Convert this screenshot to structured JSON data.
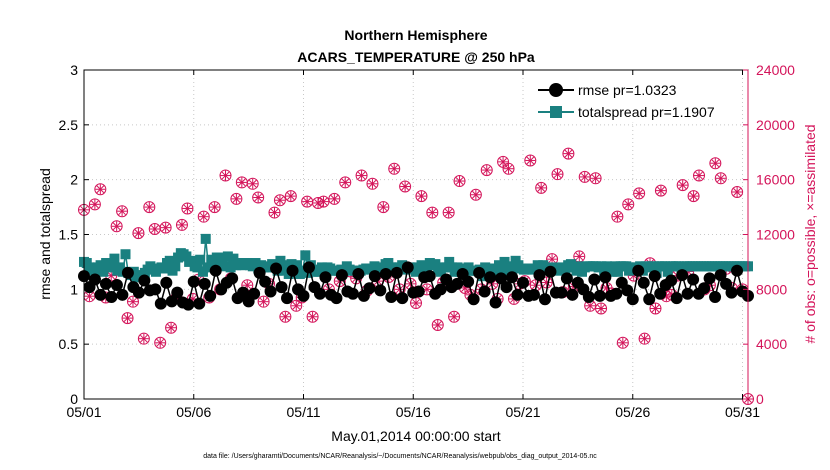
{
  "chart_data": {
    "type": "line",
    "title_line1": "Northern Hemisphere",
    "title_line2": "ACARS_TEMPERATURE @ 250 hPa",
    "xlabel": "May.01,2014 00:00:00 start",
    "ylabel_left": "rmse and totalspread",
    "ylabel_right": "# of obs: o=possible, ×=assimilated",
    "footer": "data file: /Users/gharamti/Documents/NCAR/Reanalysis/~/Documents/NCAR/Reanalysis/webpub/obs_diag_output_2014-05.nc",
    "x_ticks": [
      "05/01",
      "05/06",
      "05/11",
      "05/16",
      "05/21",
      "05/26",
      "05/31"
    ],
    "x_tick_days": [
      1,
      6,
      11,
      16,
      21,
      26,
      31
    ],
    "xlim": [
      1,
      31.25
    ],
    "y_left_ticks": [
      "0",
      "0.5",
      "1",
      "1.5",
      "2",
      "2.5",
      "3"
    ],
    "y_left_tick_values": [
      0,
      0.5,
      1,
      1.5,
      2,
      2.5,
      3
    ],
    "ylim_left": [
      0,
      3
    ],
    "y_right_ticks": [
      "0",
      "4000",
      "8000",
      "12000",
      "16000",
      "20000",
      "24000"
    ],
    "y_right_tick_values": [
      0,
      4000,
      8000,
      12000,
      16000,
      20000,
      24000
    ],
    "ylim_right": [
      0,
      24000
    ],
    "grid": true,
    "legend_position": "top-right",
    "colors": {
      "rmse": "#000000",
      "totalspread": "#1a8080",
      "obs": "#d4145a",
      "grid": "#c8c8c8"
    },
    "series": [
      {
        "name": "rmse",
        "legend_label": "rmse pr=1.0323",
        "marker": "circle",
        "color": "#000000",
        "values": [
          1.12,
          1.02,
          1.09,
          0.95,
          1.05,
          0.93,
          1.04,
          0.95,
          1.15,
          1.02,
          0.97,
          1.08,
          0.99,
          1.0,
          0.87,
          1.06,
          0.89,
          0.97,
          0.88,
          0.86,
          1.07,
          0.87,
          1.05,
          0.94,
          1.17,
          1.0,
          1.06,
          1.1,
          0.92,
          0.97,
          0.89,
          0.96,
          1.15,
          1.07,
          0.98,
          1.19,
          1.02,
          0.92,
          1.17,
          1.0,
          0.94,
          1.2,
          1.02,
          0.96,
          1.11,
          0.95,
          0.92,
          1.13,
          0.98,
          0.96,
          1.14,
          0.94,
          1.01,
          1.12,
          0.99,
          1.14,
          0.93,
          1.15,
          0.92,
          1.2,
          0.97,
          0.98,
          1.11,
          1.12,
          0.96,
          1.0,
          1.09,
          1.02,
          1.05,
          1.14,
          1.07,
          0.91,
          1.15,
          0.98,
          1.11,
          0.88,
          1.1,
          1.02,
          1.11,
          0.95,
          1.06,
          0.94,
          0.95,
          1.13,
          0.91,
          1.16,
          0.97,
          0.97,
          1.1,
          0.95,
          1.06,
          1.0,
          0.93,
          1.09,
          0.94,
          1.11,
          0.94,
          0.96,
          1.06,
          0.99,
          0.91,
          1.17,
          1.06,
          0.91,
          1.12,
          0.96,
          1.04,
          1.08,
          0.92,
          1.13,
          0.96,
          1.09,
          0.96,
          1.01,
          1.1,
          0.93,
          1.13,
          1.05,
          0.97,
          1.17,
          0.98,
          0.94
        ]
      },
      {
        "name": "totalspread",
        "legend_label": "totalspread pr=1.1907",
        "marker": "square",
        "color": "#1a8080",
        "values": [
          1.25,
          1.24,
          1.2,
          1.18,
          1.17,
          1.2,
          1.22,
          1.16,
          1.24,
          1.22,
          1.2,
          1.28,
          1.17,
          1.2,
          1.16,
          1.32,
          1.15,
          1.13,
          1.16,
          1.11,
          1.11,
          1.13,
          1.15,
          1.18,
          1.21,
          1.18,
          1.16,
          1.19,
          1.2,
          1.19,
          1.24,
          1.26,
          1.17,
          1.21,
          1.29,
          1.33,
          1.32,
          1.3,
          1.25,
          1.26,
          1.21,
          1.2,
          1.27,
          1.16,
          1.46,
          1.2,
          1.27,
          1.21,
          1.29,
          1.29,
          1.23,
          1.21,
          1.3,
          1.2,
          1.28,
          1.22,
          1.24,
          1.22,
          1.24,
          1.24,
          1.22,
          1.21,
          1.24,
          1.19,
          1.22,
          1.2,
          1.2,
          1.21,
          1.23,
          1.2,
          1.17,
          1.26,
          1.17,
          1.22,
          1.14,
          1.23,
          1.18,
          1.22,
          1.14,
          1.17,
          1.31,
          1.15,
          1.22,
          1.16,
          1.18,
          1.16,
          1.2,
          1.17,
          1.2,
          1.19,
          1.17,
          1.17,
          1.17,
          1.18,
          1.17,
          1.21,
          1.18,
          1.17,
          1.17,
          1.17,
          1.17,
          1.18,
          1.19,
          1.19,
          1.18,
          1.21,
          1.18,
          1.2,
          1.18,
          1.23,
          1.24,
          1.2,
          1.2,
          1.19,
          1.2,
          1.22,
          1.2,
          1.18,
          1.2,
          1.19,
          1.16,
          1.2,
          1.22,
          1.19,
          1.21,
          1.24,
          1.22,
          1.23,
          1.18,
          1.16,
          1.2,
          1.2,
          1.25,
          1.2,
          1.16,
          1.2,
          1.16,
          1.19,
          1.17,
          1.2,
          1.17,
          1.17,
          1.17,
          1.18,
          1.12,
          1.2,
          1.19,
          1.18,
          1.19,
          1.14,
          1.22,
          1.16,
          1.25,
          1.18,
          1.21,
          1.19,
          1.26,
          1.22,
          1.19,
          1.18,
          1.18,
          1.19,
          1.18,
          1.19,
          1.22,
          1.17,
          1.22,
          1.19,
          1.19,
          1.2,
          1.19,
          1.17,
          1.2,
          1.18,
          1.18,
          1.22,
          1.23,
          1.2,
          1.17,
          1.21,
          1.16,
          1.2,
          1.21,
          1.21,
          1.21,
          1.21,
          1.2,
          1.21,
          1.16,
          1.21,
          1.2,
          1.16,
          1.21,
          1.16,
          1.21,
          1.21,
          1.21,
          1.17,
          1.2,
          1.2,
          1.18,
          1.21,
          1.17,
          1.21,
          1.2,
          1.21,
          1.21,
          1.15,
          1.21,
          1.21,
          1.21,
          1.16,
          1.21,
          1.21,
          1.21,
          1.21,
          1.15,
          1.21,
          1.21,
          1.21,
          1.21,
          1.21,
          1.21,
          1.21,
          1.21,
          1.21,
          1.21,
          1.21,
          1.21,
          1.21,
          1.21,
          1.21,
          1.21,
          1.21,
          1.21,
          1.21,
          1.21,
          1.21,
          1.21,
          1.21,
          1.21
        ]
      },
      {
        "name": "obs",
        "legend_label": "",
        "marker": "circle-asterisk",
        "color": "#d4145a",
        "axis": "right",
        "values": [
          13800,
          7500,
          14200,
          15300,
          7400,
          9000,
          12600,
          13700,
          5900,
          7100,
          12100,
          4400,
          14000,
          12400,
          4100,
          12500,
          5200,
          7400,
          12700,
          13900,
          7300,
          8700,
          13300,
          7400,
          14000,
          8000,
          16300,
          8800,
          14600,
          15800,
          8300,
          15700,
          14700,
          7100,
          8400,
          13600,
          14500,
          6000,
          14800,
          6800,
          7400,
          14400,
          6000,
          14300,
          14400,
          8000,
          14600,
          8600,
          15800,
          9300,
          8800,
          16300,
          7900,
          15700,
          8600,
          14000,
          8900,
          16800,
          8000,
          15500,
          8400,
          7000,
          14800,
          8000,
          13600,
          5400,
          8500,
          13600,
          6000,
          15900,
          8100,
          7600,
          14900,
          8000,
          16700,
          8400,
          7300,
          17300,
          16800,
          7300,
          8400,
          8600,
          17400,
          8300,
          15400,
          8500,
          10200,
          16400,
          7800,
          17900,
          8200,
          10400,
          16200,
          6800,
          16100,
          6600,
          8100,
          7700,
          13300,
          4100,
          14200,
          9000,
          15000,
          4400,
          9900,
          6600,
          15200,
          7500,
          7600,
          9000,
          15600,
          9300,
          14800,
          16300,
          8000,
          8300,
          17200,
          16100,
          9500,
          8100,
          15100,
          8000,
          0
        ]
      }
    ]
  }
}
